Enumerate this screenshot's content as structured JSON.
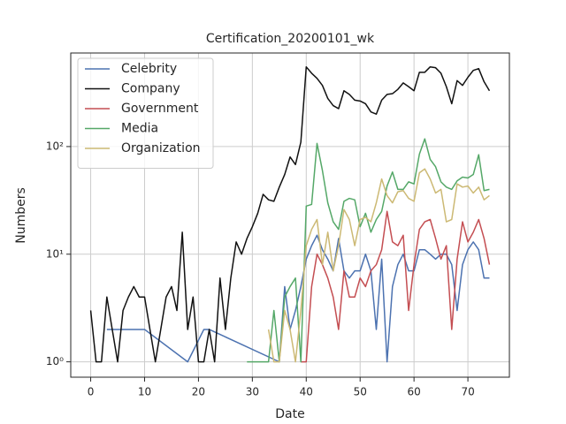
{
  "chart_data": {
    "type": "line",
    "title": "Certification_20200101_wk",
    "x_label": "Date",
    "y_label": "Numbers",
    "xlim": [
      -3.7,
      77.7
    ],
    "xticks": [
      0,
      10,
      20,
      30,
      40,
      50,
      60,
      70
    ],
    "ylim": [
      0.72,
      740
    ],
    "y_scale": "log",
    "yticks": [
      {
        "value": 1,
        "label": "10⁰"
      },
      {
        "value": 10,
        "label": "10¹"
      },
      {
        "value": 100,
        "label": "10²"
      }
    ],
    "grid": true,
    "legend": "upper-left",
    "series": [
      {
        "name": "Celebrity",
        "color": "#4c72b0",
        "x": [
          3,
          10,
          18,
          21,
          22,
          35,
          36,
          37,
          38,
          39,
          40,
          41,
          42,
          43,
          44,
          45,
          46,
          47,
          48,
          49,
          50,
          51,
          52,
          53,
          54,
          55,
          56,
          57,
          58,
          59,
          60,
          61,
          62,
          63,
          64,
          65,
          66,
          67,
          68,
          69,
          70,
          71,
          72,
          73,
          74
        ],
        "values": [
          2,
          2,
          1,
          2,
          2,
          1,
          5,
          2,
          3,
          5,
          9,
          12,
          15,
          11,
          9,
          7,
          14,
          7,
          6,
          7,
          7,
          10,
          7,
          2,
          9,
          1,
          5,
          8,
          10,
          7,
          7,
          11,
          11,
          10,
          9,
          10,
          10,
          8,
          3,
          8,
          11,
          13,
          11,
          6,
          6
        ]
      },
      {
        "name": "Company",
        "color": "#111111",
        "x": [
          0,
          1,
          2,
          3,
          4,
          5,
          6,
          7,
          8,
          9,
          10,
          11,
          12,
          13,
          14,
          15,
          16,
          17,
          18,
          19,
          20,
          21,
          22,
          23,
          24,
          25,
          26,
          27,
          28,
          29,
          30,
          31,
          32,
          33,
          34,
          35,
          36,
          37,
          38,
          39,
          40,
          41,
          42,
          43,
          44,
          45,
          46,
          47,
          48,
          49,
          50,
          51,
          52,
          53,
          54,
          55,
          56,
          57,
          58,
          59,
          60,
          61,
          62,
          63,
          64,
          65,
          66,
          67,
          68,
          69,
          70,
          71,
          72,
          73,
          74
        ],
        "values": [
          3,
          1,
          1,
          4,
          2,
          1,
          3,
          4,
          5,
          4,
          4,
          2,
          1,
          2,
          4,
          5,
          3,
          16,
          2,
          4,
          1,
          1,
          2,
          1,
          6,
          2,
          6,
          13,
          10,
          14,
          18,
          24,
          36,
          32,
          31,
          42,
          55,
          80,
          68,
          110,
          550,
          480,
          430,
          370,
          280,
          240,
          225,
          330,
          305,
          270,
          265,
          250,
          210,
          200,
          270,
          305,
          310,
          340,
          390,
          360,
          330,
          490,
          490,
          550,
          540,
          480,
          360,
          250,
          410,
          370,
          440,
          510,
          530,
          400,
          330
        ]
      },
      {
        "name": "Government",
        "color": "#c44e52",
        "x": [
          39,
          40,
          41,
          42,
          43,
          44,
          45,
          46,
          47,
          48,
          49,
          50,
          51,
          52,
          53,
          54,
          55,
          56,
          57,
          58,
          59,
          60,
          61,
          62,
          63,
          64,
          65,
          66,
          67,
          68,
          69,
          70,
          71,
          72,
          73,
          74
        ],
        "values": [
          1,
          1,
          5,
          10,
          8,
          6,
          4,
          2,
          7,
          4,
          4,
          6,
          5,
          7,
          8,
          11,
          25,
          13,
          12,
          15,
          3,
          8,
          17,
          20,
          21,
          14,
          9,
          12,
          2,
          9,
          20,
          13,
          16,
          21,
          14,
          8
        ]
      },
      {
        "name": "Media",
        "color": "#55a868",
        "x": [
          29,
          33,
          34,
          35,
          36,
          37,
          38,
          39,
          40,
          41,
          42,
          43,
          44,
          45,
          46,
          47,
          48,
          49,
          50,
          51,
          52,
          53,
          54,
          55,
          56,
          57,
          58,
          59,
          60,
          61,
          62,
          63,
          64,
          65,
          66,
          67,
          68,
          69,
          70,
          71,
          72,
          73,
          74
        ],
        "values": [
          1,
          1,
          3,
          1,
          4,
          5,
          6,
          1,
          28,
          29,
          107,
          60,
          30,
          20,
          17,
          31,
          33,
          32,
          18,
          24,
          16,
          21,
          25,
          43,
          58,
          40,
          40,
          47,
          45,
          85,
          118,
          76,
          65,
          47,
          42,
          40,
          48,
          52,
          51,
          55,
          84,
          39,
          40
        ]
      },
      {
        "name": "Organization",
        "color": "#ccb974",
        "x": [
          33,
          34,
          35,
          36,
          37,
          38,
          39,
          40,
          41,
          42,
          43,
          44,
          45,
          46,
          47,
          48,
          49,
          50,
          51,
          52,
          53,
          54,
          55,
          56,
          57,
          58,
          59,
          60,
          61,
          62,
          63,
          64,
          65,
          66,
          67,
          68,
          69,
          70,
          71,
          72,
          73,
          74
        ],
        "values": [
          2,
          1,
          1,
          3,
          2,
          1,
          3,
          12,
          17,
          21,
          8,
          16,
          7,
          12,
          26,
          21,
          12,
          21,
          22,
          20,
          30,
          50,
          35,
          30,
          38,
          39,
          33,
          31,
          57,
          62,
          50,
          37,
          40,
          20,
          21,
          45,
          42,
          43,
          37,
          42,
          32,
          35
        ]
      }
    ]
  }
}
